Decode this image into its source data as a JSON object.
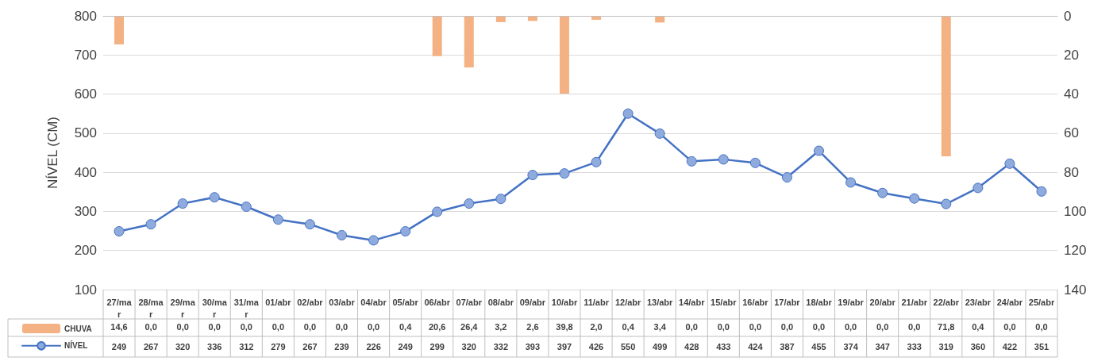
{
  "chart_data": {
    "type": "line",
    "ylabel": "NÍVEL (CM)",
    "categories": [
      "27/mar",
      "28/mar",
      "29/mar",
      "30/mar",
      "31/mar",
      "01/abr",
      "02/abr",
      "03/abr",
      "04/abr",
      "05/abr",
      "06/abr",
      "07/abr",
      "08/abr",
      "09/abr",
      "10/abr",
      "11/abr",
      "12/abr",
      "13/abr",
      "14/abr",
      "15/abr",
      "16/abr",
      "17/abr",
      "18/abr",
      "19/abr",
      "20/abr",
      "21/abr",
      "22/abr",
      "23/abr",
      "24/abr",
      "25/abr"
    ],
    "series": [
      {
        "name": "CHUVA",
        "type": "bar",
        "axis": "y2",
        "color": "#f4b183",
        "values": [
          14.6,
          0,
          0,
          0,
          0,
          0,
          0,
          0,
          0,
          0.4,
          20.6,
          26.4,
          3.2,
          2.6,
          39.8,
          2.0,
          0.4,
          3.4,
          0,
          0,
          0,
          0,
          0,
          0,
          0,
          0,
          71.8,
          0.4,
          0,
          0
        ],
        "value_labels": [
          "14,6",
          "0,0",
          "0,0",
          "0,0",
          "0,0",
          "0,0",
          "0,0",
          "0,0",
          "0,0",
          "0,4",
          "20,6",
          "26,4",
          "3,2",
          "2,6",
          "39,8",
          "2,0",
          "0,4",
          "3,4",
          "0,0",
          "0,0",
          "0,0",
          "0,0",
          "0,0",
          "0,0",
          "0,0",
          "0,0",
          "71,8",
          "0,4",
          "0,0",
          "0,0"
        ]
      },
      {
        "name": "NÍVEL",
        "color": "#4472c4",
        "values": [
          249,
          267,
          320,
          336,
          312,
          279,
          267,
          239,
          226,
          249,
          299,
          320,
          332,
          393,
          397,
          426,
          550,
          499,
          428,
          433,
          424,
          387,
          455,
          374,
          347,
          333,
          319,
          360,
          422,
          351
        ],
        "value_labels": [
          "249",
          "267",
          "320",
          "336",
          "312",
          "279",
          "267",
          "239",
          "226",
          "249",
          "299",
          "320",
          "332",
          "393",
          "397",
          "426",
          "550",
          "499",
          "428",
          "433",
          "424",
          "387",
          "455",
          "374",
          "347",
          "333",
          "319",
          "360",
          "422",
          "351"
        ]
      }
    ],
    "ylim": [
      100,
      800
    ],
    "yticks": [
      100,
      200,
      300,
      400,
      500,
      600,
      700,
      800
    ],
    "y2lim": [
      140,
      0
    ],
    "y2ticks": [
      0,
      20,
      40,
      60,
      80,
      100,
      120,
      140
    ],
    "grid": "y",
    "legend": "bottom left",
    "marker": "circle",
    "line_style": "solid"
  }
}
